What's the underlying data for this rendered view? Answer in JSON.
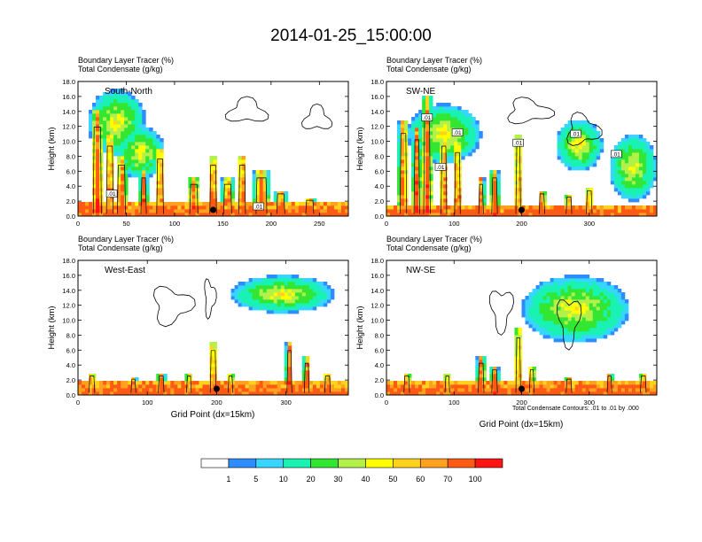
{
  "main_title": "2014-01-25_15:00:00",
  "panel_header": {
    "line1": "Boundary Layer Tracer   (%)",
    "line2": "Total Condensate   (g/kg)"
  },
  "contour_note": "Total Condensate Contours: .01 to .01 by .000",
  "x_axis_label": "Grid Point (dx=15km)",
  "colorbar": {
    "colors": [
      "#ffffff",
      "#2f8cff",
      "#36d6ff",
      "#19f2b2",
      "#32e632",
      "#b4f04a",
      "#ffff00",
      "#ffd21e",
      "#ffa01e",
      "#ff5a14",
      "#ff1414"
    ],
    "labels": [
      "1",
      "5",
      "10",
      "20",
      "30",
      "40",
      "50",
      "60",
      "70",
      "100"
    ]
  },
  "chart_data": [
    {
      "type": "heatmap",
      "name": "South-North",
      "title": "South-North",
      "xlabel": "",
      "ylabel": "Height (km)",
      "xlim": [
        0,
        280
      ],
      "ylim": [
        0,
        18
      ],
      "xticks": [
        0,
        50,
        100,
        150,
        200,
        250
      ],
      "yticks": [
        "0.0",
        "2.0",
        "4.0",
        "6.0",
        "8.0",
        "10.0",
        "12.0",
        "14.0",
        "16.0",
        "18.0"
      ],
      "marker_x": 140,
      "contour_labels": [
        {
          "text": ".01",
          "x": 35,
          "y": 3.0
        },
        {
          "text": ".01",
          "x": 187,
          "y": 1.3
        }
      ]
    },
    {
      "type": "heatmap",
      "name": "SW-NE",
      "title": "SW-NE",
      "xlabel": "",
      "ylabel": "Height (km)",
      "xlim": [
        0,
        400
      ],
      "ylim": [
        0,
        18
      ],
      "xticks": [
        0,
        100,
        200,
        300
      ],
      "yticks": [
        "0.0",
        "2.0",
        "4.0",
        "6.0",
        "8.0",
        "10.0",
        "12.0",
        "14.0",
        "16.0",
        "18.0"
      ],
      "marker_x": 200,
      "contour_labels": [
        {
          "text": ".01",
          "x": 60,
          "y": 13.2
        },
        {
          "text": ".01",
          "x": 105,
          "y": 11.2
        },
        {
          "text": ".01",
          "x": 80,
          "y": 6.6
        },
        {
          "text": ".01",
          "x": 195,
          "y": 9.8
        },
        {
          "text": ".01",
          "x": 280,
          "y": 11.0
        },
        {
          "text": ".01",
          "x": 340,
          "y": 8.3
        }
      ]
    },
    {
      "type": "heatmap",
      "name": "West-East",
      "title": "West-East",
      "xlabel": "Grid Point (dx=15km)",
      "ylabel": "Height (km)",
      "xlim": [
        0,
        390
      ],
      "ylim": [
        0,
        18
      ],
      "xticks": [
        0,
        100,
        200,
        300
      ],
      "yticks": [
        "0.0",
        "2.0",
        "4.0",
        "6.0",
        "8.0",
        "10.0",
        "12.0",
        "14.0",
        "16.0",
        "18.0"
      ],
      "marker_x": 200,
      "contour_labels": []
    },
    {
      "type": "heatmap",
      "name": "NW-SE",
      "title": "NW-SE",
      "xlabel": "Grid Point (dx=15km)",
      "ylabel": "Height (km)",
      "xlim": [
        0,
        400
      ],
      "ylim": [
        0,
        18
      ],
      "xticks": [
        0,
        100,
        200,
        300
      ],
      "yticks": [
        "0.0",
        "2.0",
        "4.0",
        "6.0",
        "8.0",
        "10.0",
        "12.0",
        "14.0",
        "16.0",
        "18.0"
      ],
      "marker_x": 200,
      "contour_labels": []
    }
  ]
}
